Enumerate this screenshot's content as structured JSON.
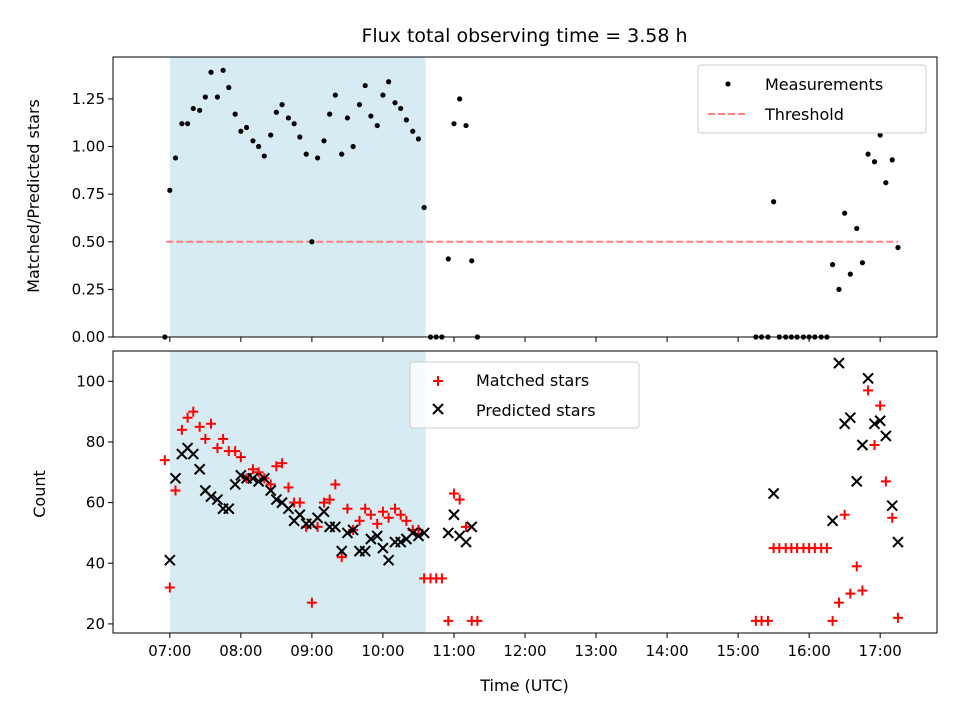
{
  "title": "Flux total observing time = 3.58 h",
  "colors": {
    "measurements": "#000000",
    "threshold": "#ff7f7f",
    "matched": "#ff0000",
    "predicted": "#000000",
    "span": "#add8e6"
  },
  "chart_data": [
    {
      "type": "scatter",
      "ylabel": "Matched/Predicted stars",
      "xlabel": "",
      "x_unit": "hours UTC",
      "xlim": [
        6.2,
        17.8
      ],
      "ylim": [
        0,
        1.47
      ],
      "yticks": [
        0.0,
        0.25,
        0.5,
        0.75,
        1.0,
        1.25
      ],
      "ytick_labels": [
        "0.00",
        "0.25",
        "0.50",
        "0.75",
        "1.00",
        "1.25"
      ],
      "highlight_span": [
        7.0,
        10.6
      ],
      "legend": {
        "placement": "upper right",
        "entries": [
          "Measurements",
          "Threshold"
        ]
      },
      "threshold": {
        "name": "Threshold",
        "y": 0.5,
        "x": [
          6.95,
          17.25
        ]
      },
      "series": [
        {
          "name": "Measurements",
          "marker": "dot",
          "points": [
            [
              6.93,
              0.0
            ],
            [
              7.0,
              0.77
            ],
            [
              7.08,
              0.94
            ],
            [
              7.17,
              1.12
            ],
            [
              7.25,
              1.12
            ],
            [
              7.33,
              1.2
            ],
            [
              7.42,
              1.19
            ],
            [
              7.5,
              1.26
            ],
            [
              7.58,
              1.39
            ],
            [
              7.67,
              1.26
            ],
            [
              7.75,
              1.4
            ],
            [
              7.83,
              1.31
            ],
            [
              7.92,
              1.17
            ],
            [
              8.0,
              1.08
            ],
            [
              8.08,
              1.1
            ],
            [
              8.17,
              1.03
            ],
            [
              8.25,
              1.0
            ],
            [
              8.33,
              0.95
            ],
            [
              8.42,
              1.06
            ],
            [
              8.5,
              1.18
            ],
            [
              8.58,
              1.22
            ],
            [
              8.67,
              1.15
            ],
            [
              8.75,
              1.12
            ],
            [
              8.83,
              1.05
            ],
            [
              8.92,
              0.96
            ],
            [
              9.0,
              0.5
            ],
            [
              9.08,
              0.94
            ],
            [
              9.17,
              1.03
            ],
            [
              9.25,
              1.17
            ],
            [
              9.33,
              1.27
            ],
            [
              9.42,
              0.96
            ],
            [
              9.5,
              1.15
            ],
            [
              9.58,
              1.0
            ],
            [
              9.67,
              1.22
            ],
            [
              9.75,
              1.32
            ],
            [
              9.83,
              1.16
            ],
            [
              9.92,
              1.11
            ],
            [
              10.0,
              1.27
            ],
            [
              10.08,
              1.34
            ],
            [
              10.17,
              1.23
            ],
            [
              10.25,
              1.2
            ],
            [
              10.33,
              1.14
            ],
            [
              10.42,
              1.08
            ],
            [
              10.5,
              1.04
            ],
            [
              10.58,
              0.68
            ],
            [
              10.67,
              0.0
            ],
            [
              10.75,
              0.0
            ],
            [
              10.83,
              0.0
            ],
            [
              10.92,
              0.41
            ],
            [
              11.0,
              1.12
            ],
            [
              11.08,
              1.25
            ],
            [
              11.17,
              1.11
            ],
            [
              11.25,
              0.4
            ],
            [
              11.33,
              0.0
            ],
            [
              15.25,
              0.0
            ],
            [
              15.33,
              0.0
            ],
            [
              15.42,
              0.0
            ],
            [
              15.5,
              0.71
            ],
            [
              15.58,
              0.0
            ],
            [
              15.67,
              0.0
            ],
            [
              15.75,
              0.0
            ],
            [
              15.83,
              0.0
            ],
            [
              15.92,
              0.0
            ],
            [
              16.0,
              0.0
            ],
            [
              16.08,
              0.0
            ],
            [
              16.17,
              0.0
            ],
            [
              16.25,
              0.0
            ],
            [
              16.33,
              0.38
            ],
            [
              16.42,
              0.25
            ],
            [
              16.5,
              0.65
            ],
            [
              16.58,
              0.33
            ],
            [
              16.67,
              0.57
            ],
            [
              16.75,
              0.39
            ],
            [
              16.83,
              0.96
            ],
            [
              16.92,
              0.92
            ],
            [
              17.0,
              1.06
            ],
            [
              17.08,
              0.81
            ],
            [
              17.17,
              0.93
            ],
            [
              17.25,
              0.47
            ]
          ]
        }
      ]
    },
    {
      "type": "scatter",
      "ylabel": "Count",
      "xlabel": "Time (UTC)",
      "x_unit": "hours UTC",
      "xlim": [
        6.2,
        17.8
      ],
      "ylim": [
        17,
        110
      ],
      "yticks": [
        20,
        40,
        60,
        80,
        100
      ],
      "ytick_labels": [
        "20",
        "40",
        "60",
        "80",
        "100"
      ],
      "xticks": [
        7,
        8,
        9,
        10,
        11,
        12,
        13,
        14,
        15,
        16,
        17
      ],
      "xtick_labels": [
        "07:00",
        "08:00",
        "09:00",
        "10:00",
        "11:00",
        "12:00",
        "13:00",
        "14:00",
        "15:00",
        "16:00",
        "17:00"
      ],
      "highlight_span": [
        7.0,
        10.6
      ],
      "legend": {
        "placement": "upper center",
        "entries": [
          "Matched stars",
          "Predicted stars"
        ]
      },
      "series": [
        {
          "name": "Matched stars",
          "marker": "plus",
          "points": [
            [
              6.93,
              74
            ],
            [
              7.0,
              32
            ],
            [
              7.08,
              64
            ],
            [
              7.17,
              84
            ],
            [
              7.25,
              88
            ],
            [
              7.33,
              90
            ],
            [
              7.42,
              85
            ],
            [
              7.5,
              81
            ],
            [
              7.58,
              86
            ],
            [
              7.67,
              78
            ],
            [
              7.75,
              81
            ],
            [
              7.83,
              77
            ],
            [
              7.92,
              77
            ],
            [
              8.0,
              75
            ],
            [
              8.08,
              68
            ],
            [
              8.17,
              71
            ],
            [
              8.25,
              70
            ],
            [
              8.33,
              68
            ],
            [
              8.42,
              66
            ],
            [
              8.5,
              72
            ],
            [
              8.58,
              73
            ],
            [
              8.67,
              65
            ],
            [
              8.75,
              60
            ],
            [
              8.83,
              60
            ],
            [
              8.92,
              52
            ],
            [
              9.0,
              27
            ],
            [
              9.08,
              52
            ],
            [
              9.17,
              60
            ],
            [
              9.25,
              61
            ],
            [
              9.33,
              66
            ],
            [
              9.42,
              42
            ],
            [
              9.5,
              58
            ],
            [
              9.58,
              51
            ],
            [
              9.67,
              54
            ],
            [
              9.75,
              58
            ],
            [
              9.83,
              56
            ],
            [
              9.92,
              53
            ],
            [
              10.0,
              57
            ],
            [
              10.08,
              55
            ],
            [
              10.17,
              58
            ],
            [
              10.25,
              56
            ],
            [
              10.33,
              54
            ],
            [
              10.42,
              51
            ],
            [
              10.5,
              51
            ],
            [
              10.58,
              35
            ],
            [
              10.67,
              35
            ],
            [
              10.75,
              35
            ],
            [
              10.83,
              35
            ],
            [
              10.92,
              21
            ],
            [
              11.0,
              63
            ],
            [
              11.08,
              61
            ],
            [
              11.17,
              52
            ],
            [
              11.25,
              21
            ],
            [
              11.33,
              21
            ],
            [
              15.25,
              21
            ],
            [
              15.33,
              21
            ],
            [
              15.42,
              21
            ],
            [
              15.5,
              45
            ],
            [
              15.58,
              45
            ],
            [
              15.67,
              45
            ],
            [
              15.75,
              45
            ],
            [
              15.83,
              45
            ],
            [
              15.92,
              45
            ],
            [
              16.0,
              45
            ],
            [
              16.08,
              45
            ],
            [
              16.17,
              45
            ],
            [
              16.25,
              45
            ],
            [
              16.33,
              21
            ],
            [
              16.42,
              27
            ],
            [
              16.5,
              56
            ],
            [
              16.58,
              30
            ],
            [
              16.67,
              39
            ],
            [
              16.75,
              31
            ],
            [
              16.83,
              97
            ],
            [
              16.92,
              79
            ],
            [
              17.0,
              92
            ],
            [
              17.08,
              67
            ],
            [
              17.17,
              55
            ],
            [
              17.25,
              22
            ]
          ]
        },
        {
          "name": "Predicted stars",
          "marker": "x",
          "points": [
            [
              7.0,
              41
            ],
            [
              7.08,
              68
            ],
            [
              7.17,
              76
            ],
            [
              7.25,
              78
            ],
            [
              7.33,
              76
            ],
            [
              7.42,
              71
            ],
            [
              7.5,
              64
            ],
            [
              7.58,
              62
            ],
            [
              7.67,
              61
            ],
            [
              7.75,
              58
            ],
            [
              7.83,
              58
            ],
            [
              7.92,
              66
            ],
            [
              8.0,
              69
            ],
            [
              8.08,
              68
            ],
            [
              8.17,
              68
            ],
            [
              8.25,
              67
            ],
            [
              8.33,
              68
            ],
            [
              8.42,
              64
            ],
            [
              8.5,
              61
            ],
            [
              8.58,
              60
            ],
            [
              8.67,
              58
            ],
            [
              8.75,
              54
            ],
            [
              8.83,
              56
            ],
            [
              8.92,
              53
            ],
            [
              9.0,
              53
            ],
            [
              9.08,
              55
            ],
            [
              9.17,
              57
            ],
            [
              9.25,
              52
            ],
            [
              9.33,
              52
            ],
            [
              9.42,
              44
            ],
            [
              9.5,
              50
            ],
            [
              9.58,
              51
            ],
            [
              9.67,
              44
            ],
            [
              9.75,
              44
            ],
            [
              9.83,
              48
            ],
            [
              9.92,
              49
            ],
            [
              10.0,
              45
            ],
            [
              10.08,
              41
            ],
            [
              10.17,
              47
            ],
            [
              10.25,
              47
            ],
            [
              10.33,
              48
            ],
            [
              10.42,
              50
            ],
            [
              10.5,
              49
            ],
            [
              10.58,
              50
            ],
            [
              10.92,
              50
            ],
            [
              11.0,
              56
            ],
            [
              11.08,
              49
            ],
            [
              11.17,
              47
            ],
            [
              11.25,
              52
            ],
            [
              15.5,
              63
            ],
            [
              16.33,
              54
            ],
            [
              16.42,
              106
            ],
            [
              16.5,
              86
            ],
            [
              16.58,
              88
            ],
            [
              16.67,
              67
            ],
            [
              16.75,
              79
            ],
            [
              16.83,
              101
            ],
            [
              16.92,
              86
            ],
            [
              17.0,
              87
            ],
            [
              17.08,
              82
            ],
            [
              17.17,
              59
            ],
            [
              17.25,
              47
            ]
          ]
        }
      ]
    }
  ]
}
